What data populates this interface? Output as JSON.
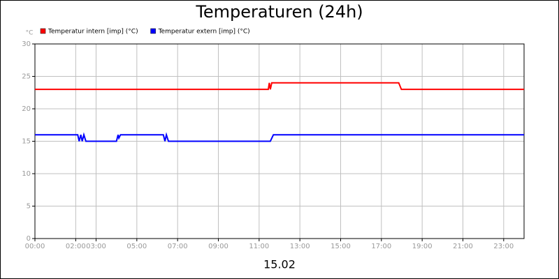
{
  "chart_data": {
    "type": "line",
    "title": "Temperaturen (24h)",
    "ylabel": "°C",
    "xlabel": "15.02",
    "xlim": [
      0,
      24
    ],
    "ylim": [
      0,
      30
    ],
    "yticks": [
      0,
      5,
      10,
      15,
      20,
      25,
      30
    ],
    "xticks": [
      {
        "value": 0,
        "label": "00:00"
      },
      {
        "value": 2,
        "label": "02:00"
      },
      {
        "value": 3,
        "label": "03:00"
      },
      {
        "value": 5,
        "label": "05:00"
      },
      {
        "value": 7,
        "label": "07:00"
      },
      {
        "value": 9,
        "label": "09:00"
      },
      {
        "value": 11,
        "label": "11:00"
      },
      {
        "value": 13,
        "label": "13:00"
      },
      {
        "value": 15,
        "label": "15:00"
      },
      {
        "value": 17,
        "label": "17:00"
      },
      {
        "value": 19,
        "label": "19:00"
      },
      {
        "value": 21,
        "label": "21:00"
      },
      {
        "value": 23,
        "label": "23:00"
      }
    ],
    "grid": true,
    "series": [
      {
        "name": "Temperatur intern [imp] (°C)",
        "color": "#ff0000",
        "x": [
          0,
          11.45,
          11.5,
          11.55,
          11.62,
          17.85,
          17.98,
          24
        ],
        "values": [
          23,
          23,
          24,
          23,
          24,
          24,
          23,
          23
        ]
      },
      {
        "name": "Temperatur extern [imp] (°C)",
        "color": "#0000ff",
        "x": [
          0,
          2.1,
          2.17,
          2.25,
          2.32,
          2.4,
          2.5,
          4.0,
          4.08,
          4.12,
          4.2,
          6.3,
          6.38,
          6.45,
          6.55,
          11.55,
          11.7,
          24
        ],
        "values": [
          16,
          16,
          15,
          16,
          15,
          16,
          15,
          15,
          16,
          15.5,
          16,
          16,
          15,
          16,
          15,
          15,
          16,
          16
        ]
      }
    ]
  }
}
